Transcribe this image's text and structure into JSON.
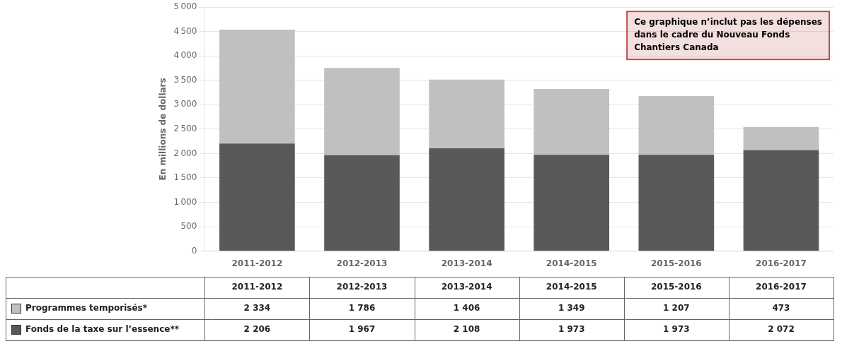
{
  "chart_data": {
    "type": "bar",
    "stacked": true,
    "categories": [
      "2011-2012",
      "2012-2013",
      "2013-2014",
      "2014-2015",
      "2015-2016",
      "2016-2017"
    ],
    "series": [
      {
        "name": "Programmes temporisés*",
        "color": "#c0c0c0",
        "values": [
          2334,
          1786,
          1406,
          1349,
          1207,
          473
        ],
        "value_labels": [
          "2 334",
          "1 786",
          "1 406",
          "1 349",
          "1 207",
          "473"
        ]
      },
      {
        "name": "Fonds de la taxe sur l’essence**",
        "color": "#595959",
        "values": [
          2206,
          1967,
          2108,
          1973,
          1973,
          2072
        ],
        "value_labels": [
          "2 206",
          "1 967",
          "2 108",
          "1 973",
          "1 973",
          "2 072"
        ]
      }
    ],
    "ylabel": "En millions de dollars",
    "ylim": [
      0,
      5000
    ],
    "yticks": [
      0,
      500,
      {
        "value": 1000,
        "label": "1 000"
      },
      {
        "value": 1500,
        "label": "1 500"
      },
      {
        "value": 2000,
        "label": "2 000"
      },
      {
        "value": 2500,
        "label": "2 500"
      },
      {
        "value": 3000,
        "label": "3 000"
      },
      {
        "value": 3500,
        "label": "3 500"
      },
      {
        "value": 4000,
        "label": "4 000"
      },
      {
        "value": 4500,
        "label": "4 500"
      },
      {
        "value": 5000,
        "label": "5 000"
      }
    ],
    "grid": true,
    "annotations": [
      {
        "text": [
          "Ce graphique n’inclut pas les dépenses",
          "dans le cadre du Nouveau Fonds",
          "Chantiers Canada"
        ],
        "color": "#c0504d"
      }
    ]
  }
}
